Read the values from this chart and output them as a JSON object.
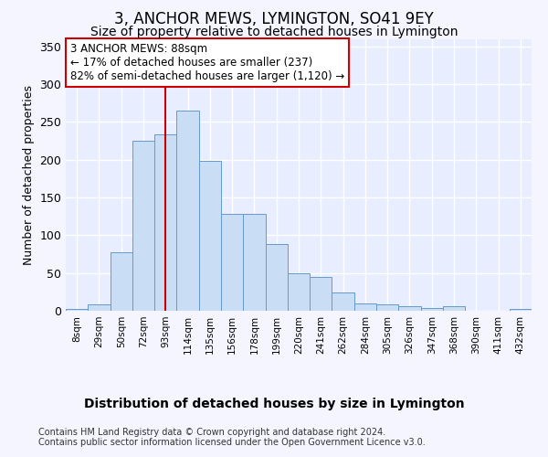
{
  "title": "3, ANCHOR MEWS, LYMINGTON, SO41 9EY",
  "subtitle": "Size of property relative to detached houses in Lymington",
  "xlabel": "Distribution of detached houses by size in Lymington",
  "ylabel": "Number of detached properties",
  "footer_line1": "Contains HM Land Registry data © Crown copyright and database right 2024.",
  "footer_line2": "Contains public sector information licensed under the Open Government Licence v3.0.",
  "bar_labels": [
    "8sqm",
    "29sqm",
    "50sqm",
    "72sqm",
    "93sqm",
    "114sqm",
    "135sqm",
    "156sqm",
    "178sqm",
    "199sqm",
    "220sqm",
    "241sqm",
    "262sqm",
    "284sqm",
    "305sqm",
    "326sqm",
    "347sqm",
    "368sqm",
    "390sqm",
    "411sqm",
    "432sqm"
  ],
  "bar_values": [
    2,
    8,
    78,
    225,
    233,
    265,
    198,
    128,
    128,
    88,
    50,
    45,
    24,
    10,
    8,
    6,
    4,
    6,
    0,
    0,
    2
  ],
  "bar_color": "#c9ddf5",
  "bar_edgecolor": "#6699cc",
  "annotation_label": "3 ANCHOR MEWS: 88sqm",
  "annotation_line1": "← 17% of detached houses are smaller (237)",
  "annotation_line2": "82% of semi-detached houses are larger (1,120) →",
  "vline_color": "#cc0000",
  "annotation_box_edgecolor": "#cc0000",
  "ylim": [
    0,
    360
  ],
  "yticks": [
    0,
    50,
    100,
    150,
    200,
    250,
    300,
    350
  ],
  "fig_facecolor": "#f5f5ff",
  "axes_facecolor": "#e8eeff",
  "grid_color": "#ffffff",
  "title_fontsize": 12,
  "subtitle_fontsize": 10,
  "xlabel_fontsize": 10,
  "ylabel_fontsize": 9,
  "ytick_fontsize": 9,
  "xtick_fontsize": 7.5,
  "footer_fontsize": 7,
  "ann_fontsize": 8.5
}
